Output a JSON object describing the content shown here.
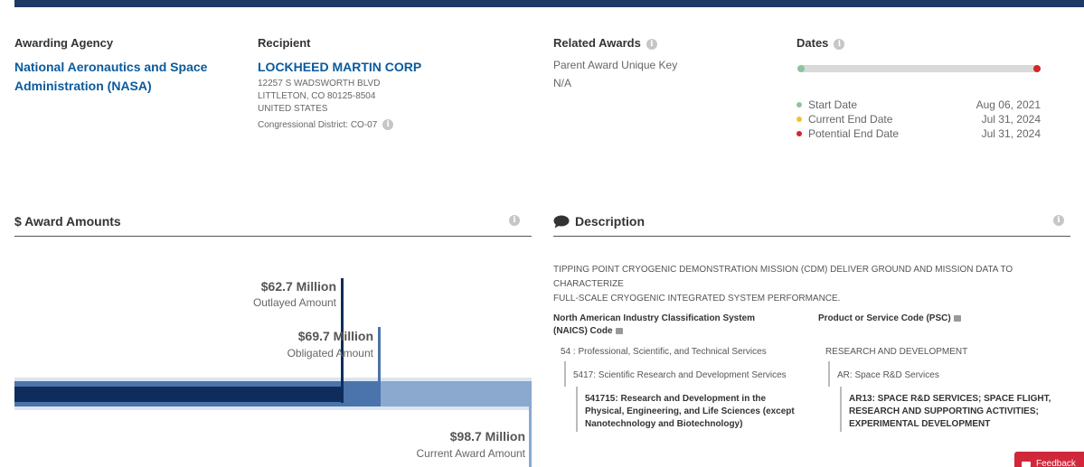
{
  "overview": {
    "awarding_agency_label": "Awarding Agency",
    "awarding_agency_line1": "National Aeronautics and Space",
    "awarding_agency_line2": "Administration (NASA)",
    "recipient_label": "Recipient",
    "recipient_name": "LOCKHEED MARTIN CORP",
    "recipient_addr1": "12257 S WADSWORTH BLVD",
    "recipient_addr2": "LITTLETON, CO 80125-8504",
    "recipient_addr3": "UNITED STATES",
    "congressional_district": "Congressional District: CO-07",
    "related_awards_label": "Related Awards",
    "parent_award_label": "Parent Award Unique Key",
    "parent_award_value": "N/A",
    "dates_label": "Dates",
    "dates": [
      {
        "label": "Start Date",
        "value": "Aug 06, 2021",
        "color": "#8dc49c"
      },
      {
        "label": "Current End Date",
        "value": "Jul 31, 2024",
        "color": "#f2c230"
      },
      {
        "label": "Potential End Date",
        "value": "Jul 31, 2024",
        "color": "#d12828"
      }
    ]
  },
  "award_amounts": {
    "title": "$ Award Amounts",
    "outlayed_value": "$62.7 Million",
    "outlayed_label": "Outlayed Amount",
    "obligated_value": "$69.7 Million",
    "obligated_label": "Obligated Amount",
    "current_value": "$98.7 Million",
    "current_label": "Current Award Amount",
    "colors": {
      "outlayed": "#0f2d5c",
      "obligated": "#4a74ab",
      "current": "#8ba8cf"
    }
  },
  "description": {
    "title": "Description",
    "text_line1": "TIPPING POINT CRYOGENIC DEMONSTRATION MISSION (CDM) DELIVER GROUND AND MISSION DATA TO CHARACTERIZE",
    "text_line2": "FULL-SCALE CRYOGENIC INTEGRATED SYSTEM PERFORMANCE.",
    "naics_heading_line1": "North American Industry Classification System",
    "naics_heading_line2": "(NAICS)  Code",
    "naics_lvl1": "54 : Professional, Scientific, and Technical Services",
    "naics_lvl2": "5417: Scientific Research and Development Services",
    "naics_leaf_line1": "541715: Research and Development in the",
    "naics_leaf_line2": "Physical, Engineering, and Life Sciences (except",
    "naics_leaf_line3": "Nanotechnology and Biotechnology)",
    "psc_heading": "Product or Service Code (PSC)",
    "psc_lvl1": "RESEARCH AND DEVELOPMENT",
    "psc_lvl2": "AR: Space R&D Services",
    "psc_leaf_line1": "AR13: SPACE R&D SERVICES; SPACE FLIGHT,",
    "psc_leaf_line2": "RESEARCH AND SUPPORTING ACTIVITIES;",
    "psc_leaf_line3": "EXPERIMENTAL DEVELOPMENT"
  },
  "feedback_label": "Feedback"
}
